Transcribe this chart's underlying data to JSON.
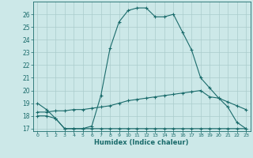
{
  "title": "",
  "xlabel": "Humidex (Indice chaleur)",
  "ylabel": "",
  "background_color": "#cce8e8",
  "grid_color": "#aacccc",
  "line_color": "#1a6b6b",
  "xlim": [
    -0.5,
    23.5
  ],
  "ylim": [
    16.8,
    27.0
  ],
  "yticks": [
    17,
    18,
    19,
    20,
    21,
    22,
    23,
    24,
    25,
    26
  ],
  "xticks": [
    0,
    1,
    2,
    3,
    4,
    5,
    6,
    7,
    8,
    9,
    10,
    11,
    12,
    13,
    14,
    15,
    16,
    17,
    18,
    19,
    20,
    21,
    22,
    23
  ],
  "line1_x": [
    0,
    1,
    2,
    3,
    4,
    5,
    6,
    7,
    8,
    9,
    10,
    11,
    12,
    13,
    14,
    15,
    16,
    17,
    18,
    19,
    20,
    21,
    22,
    23
  ],
  "line1_y": [
    19.0,
    18.5,
    17.8,
    17.0,
    17.0,
    17.0,
    17.2,
    19.6,
    23.3,
    25.4,
    26.3,
    26.5,
    26.5,
    25.8,
    25.8,
    26.0,
    24.6,
    23.2,
    21.0,
    20.2,
    19.4,
    18.7,
    17.5,
    17.0
  ],
  "line2_x": [
    0,
    1,
    2,
    3,
    4,
    5,
    6,
    7,
    8,
    9,
    10,
    11,
    12,
    13,
    14,
    15,
    16,
    17,
    18,
    19,
    20,
    21,
    22,
    23
  ],
  "line2_y": [
    18.0,
    18.0,
    17.8,
    17.0,
    17.0,
    17.0,
    17.0,
    17.0,
    17.0,
    17.0,
    17.0,
    17.0,
    17.0,
    17.0,
    17.0,
    17.0,
    17.0,
    17.0,
    17.0,
    17.0,
    17.0,
    17.0,
    17.0,
    17.0
  ],
  "line3_x": [
    0,
    1,
    2,
    3,
    4,
    5,
    6,
    7,
    8,
    9,
    10,
    11,
    12,
    13,
    14,
    15,
    16,
    17,
    18,
    19,
    20,
    21,
    22,
    23
  ],
  "line3_y": [
    18.3,
    18.3,
    18.4,
    18.4,
    18.5,
    18.5,
    18.6,
    18.7,
    18.8,
    19.0,
    19.2,
    19.3,
    19.4,
    19.5,
    19.6,
    19.7,
    19.8,
    19.9,
    20.0,
    19.5,
    19.4,
    19.1,
    18.8,
    18.5
  ]
}
